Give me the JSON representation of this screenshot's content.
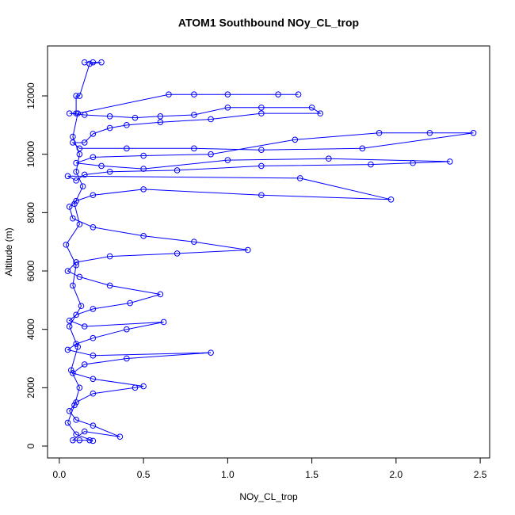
{
  "chart_data": {
    "type": "line",
    "title": "ATOM1 Southbound NOy_CL_trop",
    "x_label": "NOy_CL_trop",
    "y_label": "Altitude (m)",
    "x": [
      0.15,
      0.2,
      0.25,
      0.18,
      0.12,
      0.1,
      0.1,
      0.06,
      0.15,
      0.3,
      0.45,
      0.6,
      0.8,
      1.0,
      1.2,
      1.5,
      1.55,
      1.2,
      0.9,
      0.6,
      0.4,
      0.3,
      0.2,
      0.15,
      0.08,
      0.12,
      0.4,
      0.8,
      1.2,
      1.8,
      2.46,
      2.2,
      1.9,
      1.4,
      0.9,
      0.5,
      0.2,
      0.1,
      0.25,
      0.5,
      1.0,
      1.6,
      2.32,
      2.1,
      1.85,
      1.2,
      0.7,
      0.3,
      0.15,
      0.1,
      0.05,
      1.43,
      1.97,
      1.2,
      0.5,
      0.2,
      0.1,
      0.06,
      0.08,
      0.2,
      0.5,
      0.8,
      1.12,
      0.7,
      0.3,
      0.1,
      0.05,
      0.12,
      0.3,
      0.6,
      0.42,
      0.2,
      0.1,
      0.06,
      0.15,
      0.62,
      0.4,
      0.2,
      0.1,
      0.05,
      0.2,
      0.9,
      0.4,
      0.15,
      0.08,
      0.2,
      0.5,
      0.45,
      0.2,
      0.1,
      0.06,
      0.1,
      0.2,
      0.36,
      0.15,
      0.08,
      0.12,
      0.18,
      0.2,
      0.1,
      0.05,
      0.09,
      0.12,
      0.07,
      0.11,
      0.06,
      0.13,
      0.08,
      0.1,
      0.04,
      0.12,
      0.09,
      0.14,
      0.1,
      0.12,
      0.08,
      0.11,
      0.65,
      0.8,
      1.0,
      1.3,
      1.42
    ],
    "series": [
      {
        "color": "#0000ff",
        "values": [
          13150,
          13150,
          13150,
          13100,
          12000,
          12000,
          11400,
          11400,
          11350,
          11300,
          11250,
          11300,
          11350,
          11600,
          11600,
          11600,
          11400,
          11400,
          11200,
          11100,
          11000,
          10900,
          10700,
          10400,
          10400,
          10200,
          10200,
          10200,
          10150,
          10200,
          10730,
          10730,
          10730,
          10500,
          10000,
          9950,
          9900,
          9700,
          9600,
          9500,
          9800,
          9850,
          9750,
          9700,
          9650,
          9600,
          9450,
          9400,
          9300,
          9100,
          9250,
          9180,
          8450,
          8600,
          8800,
          8600,
          8400,
          8200,
          7800,
          7500,
          7200,
          7000,
          6720,
          6600,
          6500,
          6300,
          6000,
          5800,
          5500,
          5200,
          4900,
          4700,
          4500,
          4300,
          4100,
          4250,
          4000,
          3700,
          3500,
          3300,
          3100,
          3200,
          3000,
          2800,
          2500,
          2300,
          2050,
          2000,
          1800,
          1500,
          1200,
          900,
          700,
          320,
          500,
          200,
          200,
          200,
          180,
          400,
          800,
          1400,
          2000,
          2600,
          3400,
          4100,
          4800,
          5500,
          6200,
          6900,
          7600,
          8300,
          8900,
          9400,
          10000,
          10600,
          11400,
          12050,
          12050,
          12050,
          12050,
          12050
        ]
      }
    ],
    "xlim": [
      -0.07,
      2.556
    ],
    "ylim": [
      -407,
      13711
    ],
    "xticks": [
      {
        "value": 0,
        "label": "0.0"
      },
      0.5,
      {
        "value": 1,
        "label": "1.0"
      },
      1.5,
      {
        "value": 2,
        "label": "2.0"
      },
      2.5
    ],
    "yticks": [
      0,
      2000,
      4000,
      6000,
      8000,
      10000,
      12000
    ]
  }
}
